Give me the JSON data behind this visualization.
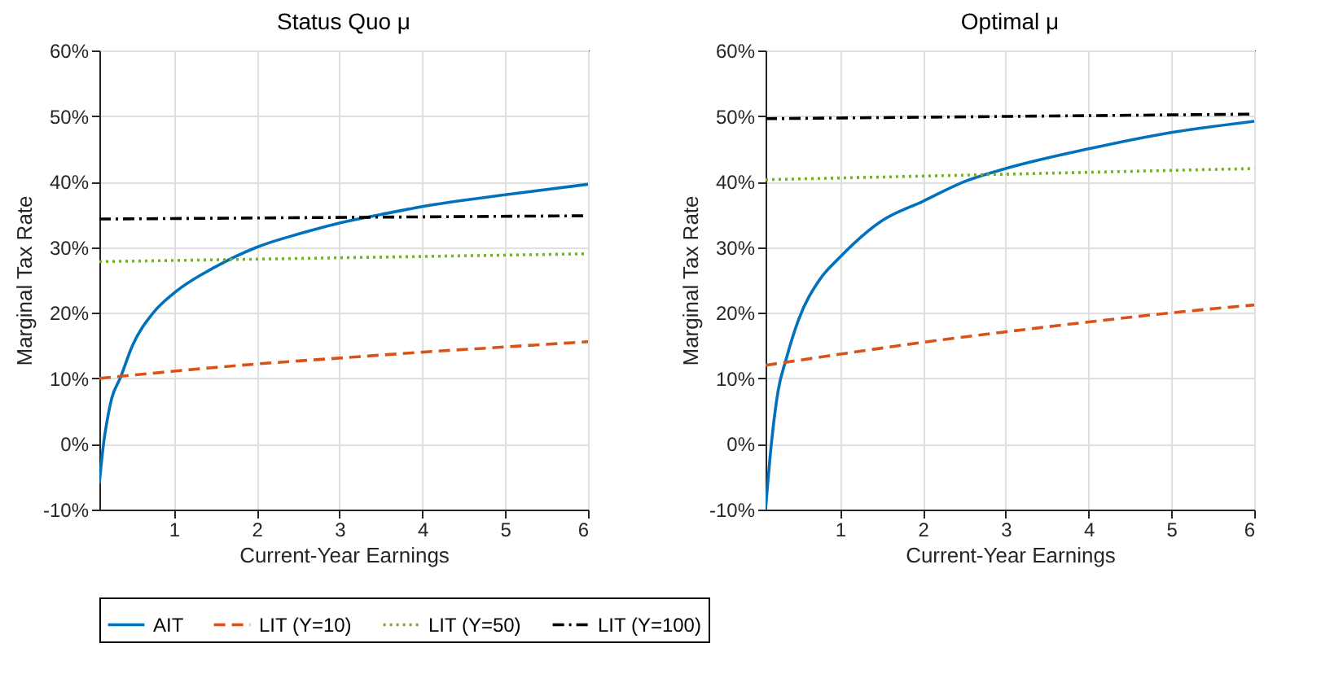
{
  "chart_data": [
    {
      "type": "line",
      "title": "Status Quo μ",
      "xlabel": "Current-Year Earnings",
      "ylabel": "Marginal Tax Rate",
      "xlim": [
        0.1,
        6
      ],
      "xticks": [
        1,
        2,
        3,
        4,
        5,
        6
      ],
      "ylim": [
        -10,
        60
      ],
      "yticks": [
        {
          "value": -10,
          "label": "-10%"
        },
        {
          "value": 0,
          "label": "0%"
        },
        {
          "value": 10,
          "label": "10%"
        },
        {
          "value": 20,
          "label": "20%"
        },
        {
          "value": 30,
          "label": "30%"
        },
        {
          "value": 40,
          "label": "40%"
        },
        {
          "value": 50,
          "label": "50%"
        },
        {
          "value": 60,
          "label": "60%"
        }
      ],
      "grid": true,
      "legend": "bottom",
      "series": [
        {
          "name": "AIT",
          "color": "#0072bd",
          "line_style": "solid",
          "x": [
            0.1,
            0.15,
            0.2,
            0.25,
            0.35,
            0.5,
            0.75,
            1,
            1.5,
            2,
            2.5,
            3,
            3.5,
            4,
            5,
            6
          ],
          "values": [
            -6,
            0,
            4,
            7,
            10,
            15,
            20,
            23,
            27,
            30,
            32,
            33.7,
            35,
            36.2,
            38,
            39.6
          ]
        },
        {
          "name": "LIT (Y=10)",
          "color": "#d95319",
          "line_style": "dashed",
          "x": [
            0.1,
            1,
            2,
            3,
            4,
            5,
            6
          ],
          "values": [
            10,
            11.1,
            12.2,
            13.1,
            14,
            14.8,
            15.6
          ]
        },
        {
          "name": "LIT (Y=50)",
          "color": "#77ac30",
          "line_style": "dotted",
          "x": [
            0.1,
            6
          ],
          "values": [
            27.8,
            29
          ]
        },
        {
          "name": "LIT (Y=100)",
          "color": "#000000",
          "line_style": "dashdot",
          "x": [
            0.1,
            6
          ],
          "values": [
            34.3,
            34.8
          ]
        }
      ]
    },
    {
      "type": "line",
      "title": "Optimal μ",
      "xlabel": "Current-Year Earnings",
      "ylabel": "Marginal Tax Rate",
      "xlim": [
        0.1,
        6
      ],
      "xticks": [
        1,
        2,
        3,
        4,
        5,
        6
      ],
      "ylim": [
        -10,
        60
      ],
      "yticks": [
        {
          "value": -10,
          "label": "-10%"
        },
        {
          "value": 0,
          "label": "0%"
        },
        {
          "value": 10,
          "label": "10%"
        },
        {
          "value": 20,
          "label": "20%"
        },
        {
          "value": 30,
          "label": "30%"
        },
        {
          "value": 40,
          "label": "40%"
        },
        {
          "value": 50,
          "label": "50%"
        },
        {
          "value": 60,
          "label": "60%"
        }
      ],
      "grid": true,
      "legend": "bottom",
      "series": [
        {
          "name": "AIT",
          "color": "#0072bd",
          "line_style": "solid",
          "x": [
            0.1,
            0.17,
            0.25,
            0.35,
            0.5,
            0.75,
            1,
            1.5,
            2,
            2.5,
            3,
            4,
            5,
            6
          ],
          "values": [
            -10,
            0,
            8,
            13,
            19,
            25,
            28.5,
            34,
            37,
            40,
            42,
            45,
            47.5,
            49.2
          ]
        },
        {
          "name": "LIT (Y=10)",
          "color": "#d95319",
          "line_style": "dashed",
          "x": [
            0.1,
            1,
            2,
            3,
            4,
            5,
            6
          ],
          "values": [
            12,
            13.7,
            15.5,
            17.1,
            18.6,
            20,
            21.2
          ]
        },
        {
          "name": "LIT (Y=50)",
          "color": "#77ac30",
          "line_style": "dotted",
          "x": [
            0.1,
            6
          ],
          "values": [
            40.3,
            42
          ]
        },
        {
          "name": "LIT (Y=100)",
          "color": "#000000",
          "line_style": "dashdot",
          "x": [
            0.1,
            6
          ],
          "values": [
            49.6,
            50.3
          ]
        }
      ]
    }
  ]
}
